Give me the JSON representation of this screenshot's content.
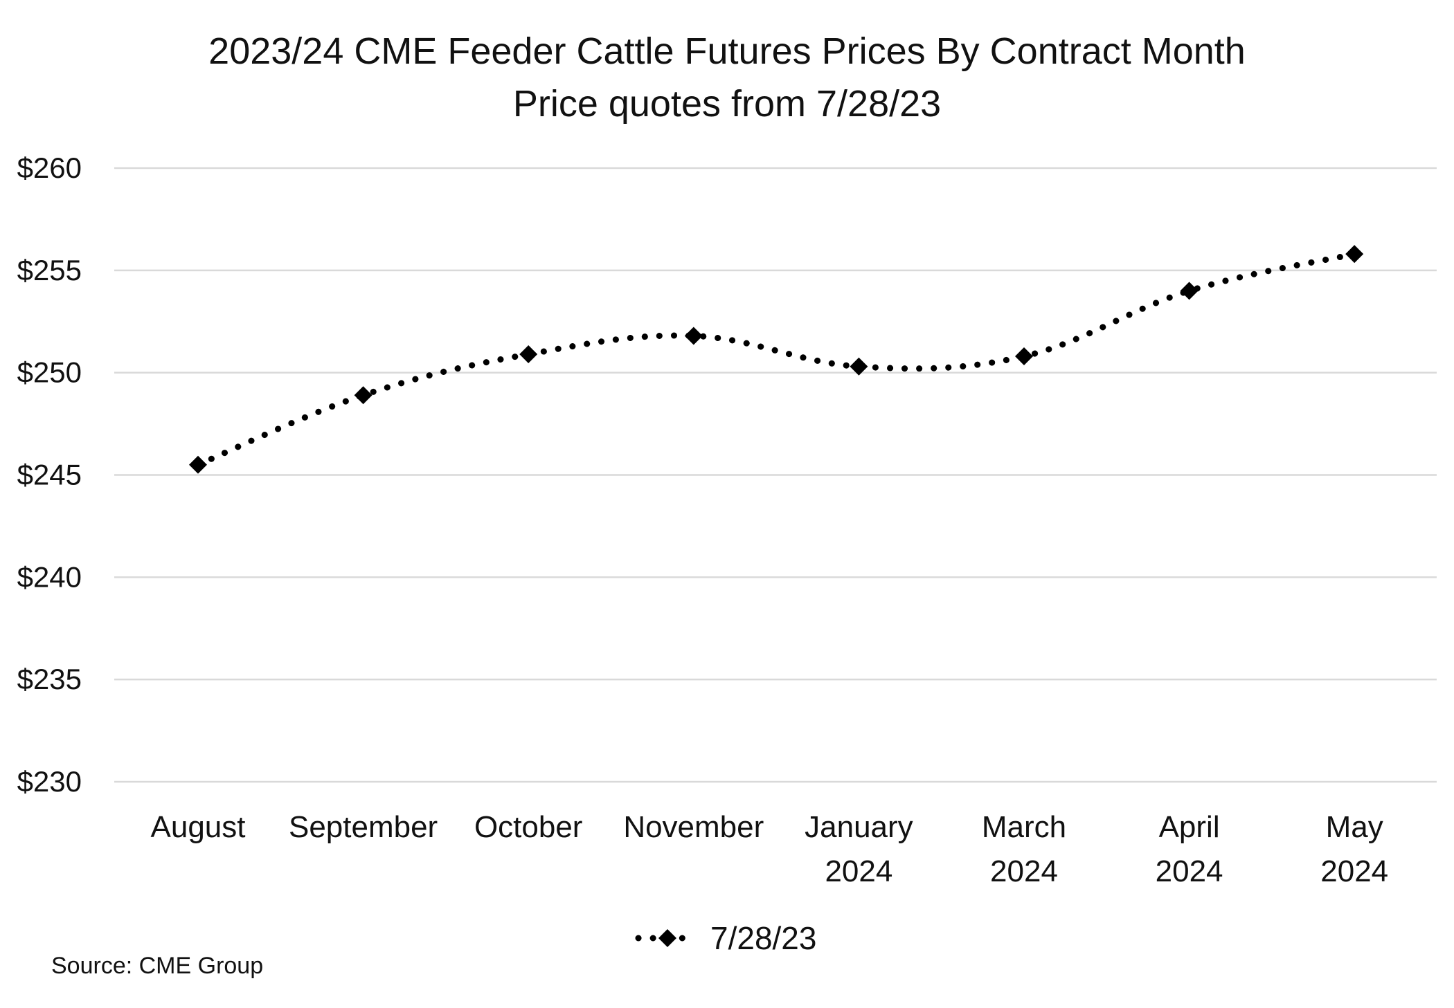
{
  "chart_data": {
    "type": "line",
    "title": "2023/24 CME Feeder Cattle Futures Prices By Contract Month",
    "subtitle": "Price quotes from 7/28/23",
    "categories": [
      [
        "August"
      ],
      [
        "September"
      ],
      [
        "October"
      ],
      [
        "November"
      ],
      [
        "January",
        "2024"
      ],
      [
        "March",
        "2024"
      ],
      [
        "April",
        "2024"
      ],
      [
        "May",
        "2024"
      ]
    ],
    "series": [
      {
        "name": "7/28/23",
        "values": [
          245.5,
          248.9,
          250.9,
          251.8,
          250.3,
          250.8,
          254.0,
          255.8
        ],
        "color": "#000000",
        "line_style": "dotted",
        "marker": "diamond"
      }
    ],
    "ylim": [
      230,
      260
    ],
    "yticks": [
      230,
      235,
      240,
      245,
      250,
      255,
      260
    ],
    "y_tick_prefix": "$",
    "grid": true,
    "legend_position": "bottom",
    "source": "Source: CME Group",
    "colors": {
      "gridline": "#d9d9d9",
      "text": "#111111"
    }
  }
}
